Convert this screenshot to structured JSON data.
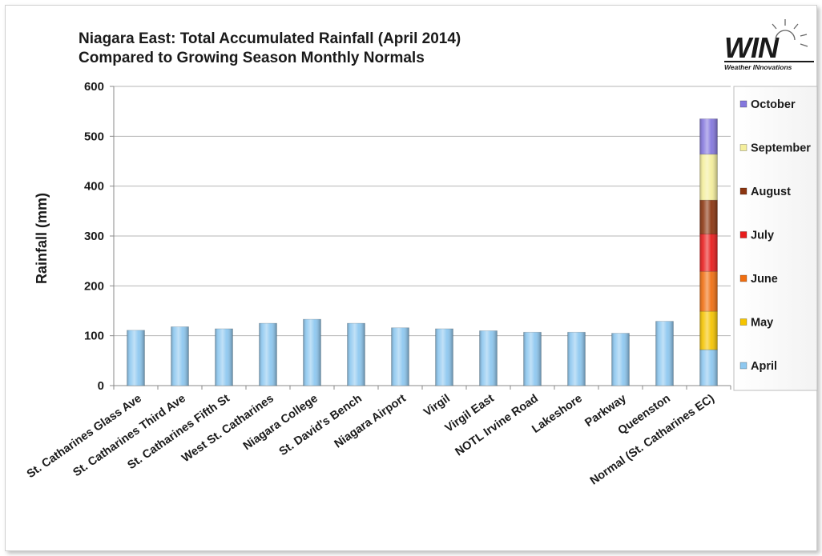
{
  "chart_data": {
    "type": "bar",
    "title": "Niagara East: Total Accumulated Rainfall (April 2014)",
    "subtitle": "Compared to Growing Season Monthly Normals",
    "xlabel": "",
    "ylabel": "Rainfall (mm)",
    "ylim": [
      0,
      600
    ],
    "yticks": [
      0,
      100,
      200,
      300,
      400,
      500,
      600
    ],
    "grid": true,
    "legend_position": "right",
    "categories": [
      "St. Catharines Glass Ave",
      "St. Catharines Third Ave",
      "St. Catharines Fifth St",
      "West St. Catharines",
      "Niagara College",
      "St. David's Bench",
      "Niagara Airport",
      "Virgil",
      "Virgil East",
      "NOTL Irvine Road",
      "Lakeshore",
      "Parkway",
      "Queenston",
      "Normal (St. Catharines EC)"
    ],
    "series": [
      {
        "name": "April",
        "color": "#8ec8f0",
        "values": [
          111,
          118,
          114,
          125,
          133,
          125,
          116,
          114,
          110,
          107,
          107,
          105,
          129,
          72
        ]
      },
      {
        "name": "May",
        "color": "#f5c400",
        "values": [
          0,
          0,
          0,
          0,
          0,
          0,
          0,
          0,
          0,
          0,
          0,
          0,
          0,
          77
        ]
      },
      {
        "name": "June",
        "color": "#f06e10",
        "values": [
          0,
          0,
          0,
          0,
          0,
          0,
          0,
          0,
          0,
          0,
          0,
          0,
          0,
          80
        ]
      },
      {
        "name": "July",
        "color": "#e81c1c",
        "values": [
          0,
          0,
          0,
          0,
          0,
          0,
          0,
          0,
          0,
          0,
          0,
          0,
          0,
          75
        ]
      },
      {
        "name": "August",
        "color": "#8b3510",
        "values": [
          0,
          0,
          0,
          0,
          0,
          0,
          0,
          0,
          0,
          0,
          0,
          0,
          0,
          68
        ]
      },
      {
        "name": "September",
        "color": "#f4ee9c",
        "values": [
          0,
          0,
          0,
          0,
          0,
          0,
          0,
          0,
          0,
          0,
          0,
          0,
          0,
          92
        ]
      },
      {
        "name": "October",
        "color": "#8477dd",
        "values": [
          0,
          0,
          0,
          0,
          0,
          0,
          0,
          0,
          0,
          0,
          0,
          0,
          0,
          71
        ]
      }
    ],
    "legend_order": [
      "October",
      "September",
      "August",
      "July",
      "June",
      "May",
      "April"
    ]
  },
  "logo": {
    "text": "WIN",
    "tagline": "Weather INnovations",
    "color": "#1a1a1a"
  }
}
